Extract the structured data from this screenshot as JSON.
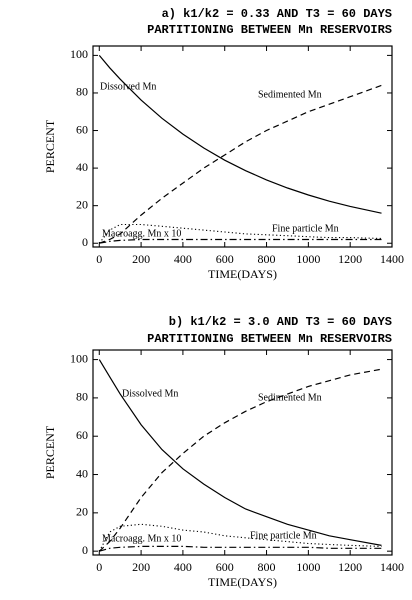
{
  "chart_data": [
    {
      "type": "line",
      "title": "a) k1/k2 = 0.33 AND T3 = 60 DAYS",
      "subtitle": "PARTITIONING BETWEEN Mn RESERVOIRS",
      "xlabel": "TIME(DAYS)",
      "ylabel": "PERCENT",
      "x": [
        0,
        50,
        100,
        200,
        300,
        400,
        500,
        600,
        700,
        800,
        900,
        1000,
        1100,
        1200,
        1350
      ],
      "series": [
        {
          "name": "Dissolved Mn",
          "color": "#000000",
          "style": "solid",
          "values": [
            100,
            93.4,
            87.3,
            76.2,
            66.5,
            58.1,
            50.7,
            44.2,
            38.6,
            33.7,
            29.4,
            25.7,
            22.4,
            19.6,
            16
          ]
        },
        {
          "name": "Sedimented Mn",
          "color": "#000000",
          "style": "dashed",
          "values": [
            0,
            2,
            5,
            15,
            24,
            32,
            40,
            47,
            54,
            60,
            65,
            70,
            74,
            78,
            84
          ]
        },
        {
          "name": "Macroagg. Mn x 10",
          "color": "#000000",
          "style": "dotted",
          "values": [
            0,
            7,
            10,
            10,
            9,
            8,
            7,
            6,
            5,
            4.5,
            4,
            3.5,
            3,
            3,
            2.5
          ]
        },
        {
          "name": "Fine particle Mn",
          "color": "#000000",
          "style": "dashdot",
          "values": [
            0,
            1,
            1.5,
            2,
            2,
            2,
            2,
            2,
            2,
            2,
            2,
            2,
            2,
            2,
            2
          ]
        }
      ],
      "xlim": [
        -30,
        1400
      ],
      "xticks": [
        0,
        200,
        400,
        600,
        800,
        1000,
        1200,
        1400
      ],
      "ylim": [
        -2,
        105
      ],
      "yticks": [
        0,
        20,
        40,
        60,
        80,
        100
      ]
    },
    {
      "type": "line",
      "title": "b) k1/k2 = 3.0 AND T3 = 60 DAYS",
      "subtitle": "PARTITIONING BETWEEN Mn RESERVOIRS",
      "xlabel": "TIME(DAYS)",
      "ylabel": "PERCENT",
      "x": [
        0,
        50,
        100,
        200,
        300,
        400,
        500,
        600,
        700,
        800,
        900,
        1000,
        1100,
        1200,
        1350
      ],
      "series": [
        {
          "name": "Dissolved Mn",
          "color": "#000000",
          "style": "solid",
          "values": [
            100,
            91,
            82,
            66,
            53,
            43,
            35,
            28,
            22,
            18,
            14,
            11,
            8,
            6,
            3
          ]
        },
        {
          "name": "Sedimented Mn",
          "color": "#000000",
          "style": "dashed",
          "values": [
            0,
            5,
            12,
            28,
            41,
            51,
            60,
            67,
            73,
            78,
            82,
            86,
            89,
            92,
            95
          ]
        },
        {
          "name": "Macroagg. Mn x 10",
          "color": "#000000",
          "style": "dotted",
          "values": [
            0,
            10,
            13,
            14,
            13,
            11,
            10,
            8,
            7,
            6,
            5,
            4,
            3.5,
            3,
            2.5
          ]
        },
        {
          "name": "Fine particle Mn",
          "color": "#000000",
          "style": "dashdot",
          "values": [
            0,
            1.5,
            2,
            2.5,
            2.5,
            2.5,
            2,
            2,
            2,
            2,
            2,
            2,
            1.5,
            1.5,
            1.5
          ]
        }
      ],
      "xlim": [
        -30,
        1400
      ],
      "xticks": [
        0,
        200,
        400,
        600,
        800,
        1000,
        1200,
        1400
      ],
      "ylim": [
        -2,
        105
      ],
      "yticks": [
        0,
        20,
        40,
        60,
        80,
        100
      ]
    }
  ]
}
